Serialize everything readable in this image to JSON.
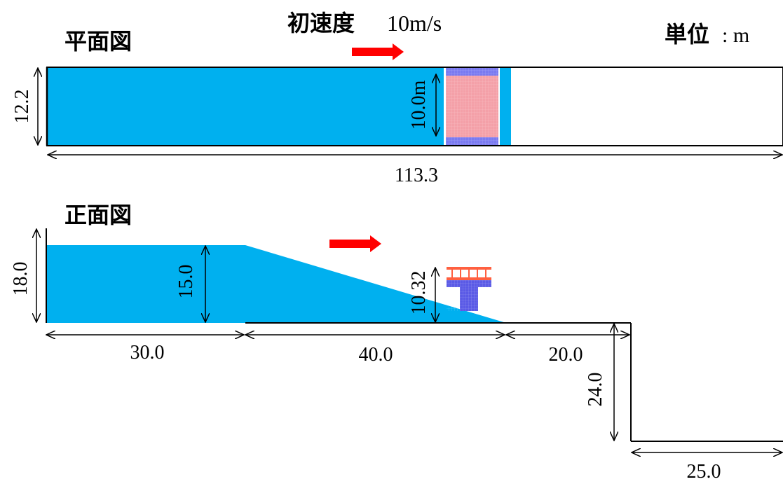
{
  "header": {
    "plan_title": "平面図",
    "velocity_label": "初速度",
    "velocity_value": "10m/s",
    "unit_label": "単位",
    "unit_value": ": m"
  },
  "plan_view": {
    "height_label": "12.2",
    "pier_width_label": "10.0m",
    "length_label": "113.3"
  },
  "front_view": {
    "title": "正面図",
    "total_height_label": "18.0",
    "water_depth_label": "15.0",
    "pier_height_label": "10.32",
    "flat_length_label": "30.0",
    "slope_length_label": "40.0",
    "step_length_label": "20.0",
    "drop_label": "24.0",
    "tail_length_label": "25.0"
  },
  "colors": {
    "water": "#00b0ef",
    "arrow": "#ff0000",
    "pier_top_view": "#f4a0a8",
    "pier_edge_view": "#7a7af0",
    "pier_front": "#5a5ae6",
    "girder_front": "#ff6040"
  }
}
